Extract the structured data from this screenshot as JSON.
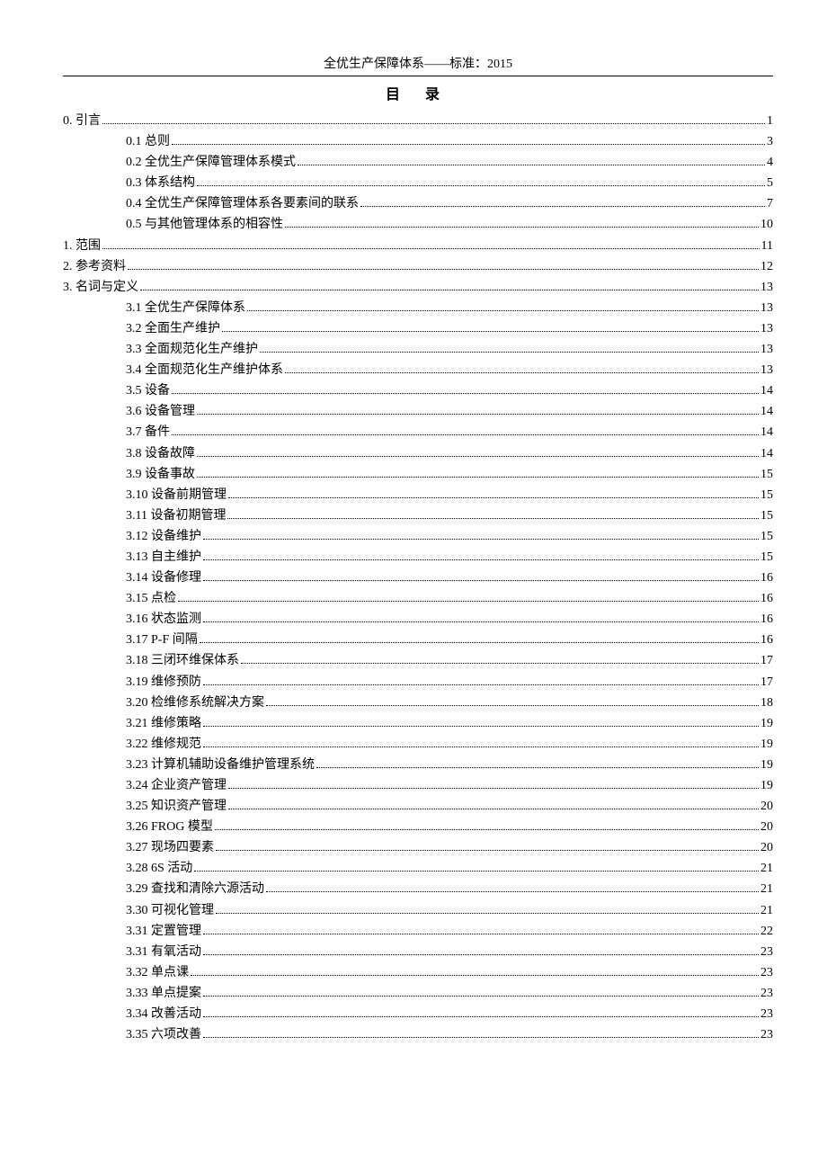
{
  "header": "全优生产保障体系——标准：2015",
  "title": "目  录",
  "toc": [
    {
      "level": 1,
      "label": "0.  引言",
      "page": "1"
    },
    {
      "level": 2,
      "label": "0.1  总则",
      "page": "3"
    },
    {
      "level": 2,
      "label": "0.2  全优生产保障管理体系模式",
      "page": "4"
    },
    {
      "level": 2,
      "label": "0.3  体系结构",
      "page": "5"
    },
    {
      "level": 2,
      "label": "0.4  全优生产保障管理体系各要素间的联系",
      "page": "7"
    },
    {
      "level": 2,
      "label": "0.5  与其他管理体系的相容性",
      "page": "10"
    },
    {
      "level": 1,
      "label": "1.  范围",
      "page": "11"
    },
    {
      "level": 1,
      "label": "2.  参考资料",
      "page": "12"
    },
    {
      "level": 1,
      "label": "3.  名词与定义",
      "page": "13"
    },
    {
      "level": 2,
      "label": "3.1  全优生产保障体系",
      "page": "13"
    },
    {
      "level": 2,
      "label": "3.2   全面生产维护",
      "page": "13"
    },
    {
      "level": 2,
      "label": "3.3  全面规范化生产维护",
      "page": "13"
    },
    {
      "level": 2,
      "label": "3.4  全面规范化生产维护体系",
      "page": "13"
    },
    {
      "level": 2,
      "label": "3.5  设备",
      "page": "14"
    },
    {
      "level": 2,
      "label": "3.6  设备管理",
      "page": "14"
    },
    {
      "level": 2,
      "label": "3.7  备件",
      "page": "14"
    },
    {
      "level": 2,
      "label": "3.8  设备故障",
      "page": "14"
    },
    {
      "level": 2,
      "label": "3.9  设备事故",
      "page": "15"
    },
    {
      "level": 2,
      "label": "3.10  设备前期管理",
      "page": "15"
    },
    {
      "level": 2,
      "label": "3.11  设备初期管理",
      "page": "15"
    },
    {
      "level": 2,
      "label": "3.12  设备维护",
      "page": "15"
    },
    {
      "level": 2,
      "label": "3.13  自主维护",
      "page": "15"
    },
    {
      "level": 2,
      "label": "3.14  设备修理",
      "page": "16"
    },
    {
      "level": 2,
      "label": "3.15  点检",
      "page": "16"
    },
    {
      "level": 2,
      "label": "3.16  状态监测",
      "page": "16"
    },
    {
      "level": 2,
      "label": "3.17 P-F 间隔",
      "page": "16"
    },
    {
      "level": 2,
      "label": "3.18  三闭环维保体系",
      "page": "17"
    },
    {
      "level": 2,
      "label": "3.19  维修预防",
      "page": "17"
    },
    {
      "level": 2,
      "label": "3.20  检维修系统解决方案",
      "page": "18"
    },
    {
      "level": 2,
      "label": "3.21  维修策略",
      "page": "19"
    },
    {
      "level": 2,
      "label": "3.22  维修规范",
      "page": "19"
    },
    {
      "level": 2,
      "label": "3.23  计算机辅助设备维护管理系统",
      "page": "19"
    },
    {
      "level": 2,
      "label": "3.24  企业资产管理",
      "page": "19"
    },
    {
      "level": 2,
      "label": "3.25  知识资产管理",
      "page": "20"
    },
    {
      "level": 2,
      "label": "3.26 FROG 模型",
      "page": "20"
    },
    {
      "level": 2,
      "label": "3.27  现场四要素",
      "page": "20"
    },
    {
      "level": 2,
      "label": "3.28 6S 活动",
      "page": "21"
    },
    {
      "level": 2,
      "label": "3.29  查找和清除六源活动",
      "page": "21"
    },
    {
      "level": 2,
      "label": "3.30  可视化管理",
      "page": "21"
    },
    {
      "level": 2,
      "label": "3.31  定置管理",
      "page": "22"
    },
    {
      "level": 2,
      "label": "3.31  有氧活动",
      "page": "23"
    },
    {
      "level": 2,
      "label": "3.32  单点课",
      "page": "23"
    },
    {
      "level": 2,
      "label": "3.33  单点提案",
      "page": "23"
    },
    {
      "level": 2,
      "label": "3.34  改善活动",
      "page": "23"
    },
    {
      "level": 2,
      "label": "3.35  六项改善",
      "page": "23"
    }
  ]
}
